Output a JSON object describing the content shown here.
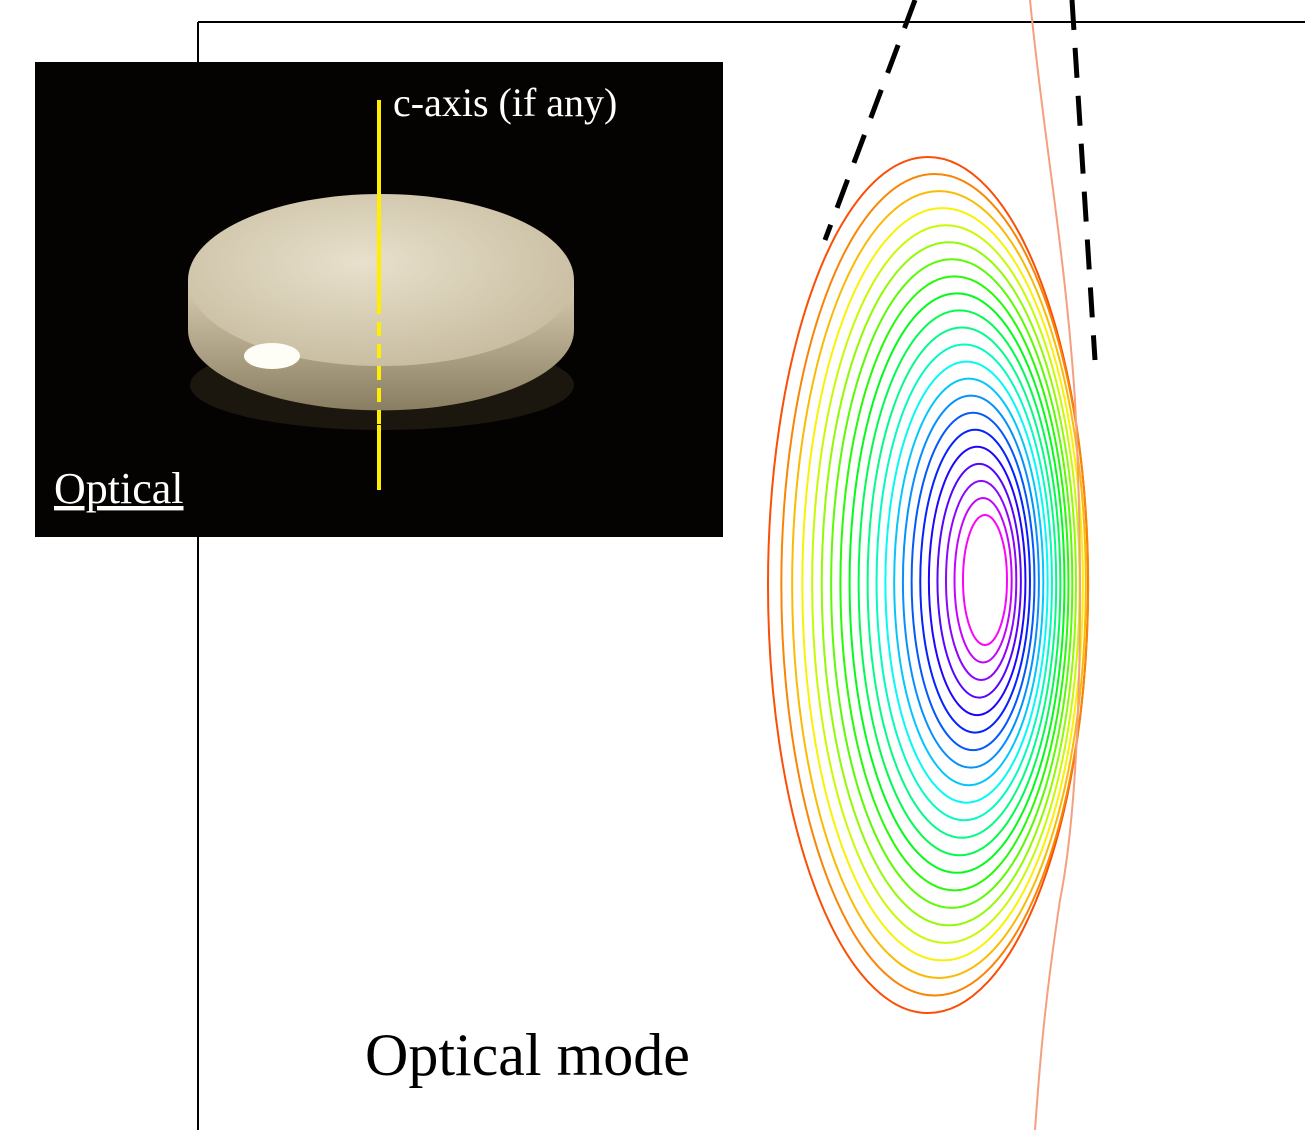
{
  "photo": {
    "axis_label": "c-axis (if any)",
    "caption": "Optical"
  },
  "mode_label": "Optical mode"
}
